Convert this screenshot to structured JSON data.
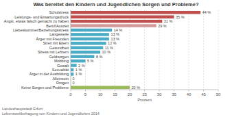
{
  "chart_data": {
    "type": "bar",
    "orientation": "horizontal",
    "title": "Was bereitet den Kindern und Jugendlichen Sorgen und Probleme?",
    "categories": [
      "Schulstress",
      "Leistungs- und Erwartungsdruck",
      "Angst, etwas falsch gemacht zu haben",
      "Beruf/Auszeit",
      "Liebeskummer/Beziehungsstress",
      "Langeweile",
      "Ärger mit Freunden",
      "Streit mit Eltern",
      "Gesundheit",
      "Stress mit Lehrern",
      "Geldsorgen",
      "Mobbing",
      "Gewalt",
      "Sexualität",
      "Ärger in der Ausbildung",
      "Alleinsein",
      "Drogen",
      "Keine Sorgen und Probleme"
    ],
    "values": [
      44,
      35,
      31,
      29,
      14,
      13,
      13,
      12,
      11,
      10,
      8,
      5,
      2,
      1,
      1,
      0,
      0,
      20
    ],
    "value_labels": [
      "44 %",
      "35 %",
      "31 %",
      "29 %",
      "14 %",
      "13 %",
      "13 %",
      "12 %",
      "11 %",
      "10 %",
      "8 %",
      "5 %",
      "2 %",
      "1 %",
      "1 %",
      "0",
      "0",
      "20 %"
    ],
    "colors": [
      "#c0504d",
      "#c0504d",
      "#c0504d",
      "#d49898",
      "#4bacc6",
      "#4bacc6",
      "#4bacc6",
      "#4bacc6",
      "#4bacc6",
      "#4bacc6",
      "#4bacc6",
      "#4bacc6",
      "#4bacc6",
      "#4bacc6",
      "#4bacc6",
      "#4bacc6",
      "#4bacc6",
      "#9bbb59"
    ],
    "x_label": "Prozent",
    "xlim": [
      0,
      50
    ],
    "xticks": [
      0,
      5,
      10,
      15,
      20,
      25,
      30,
      35,
      40,
      45,
      50
    ],
    "grid": true,
    "annotations": [
      "Landeshauptstadt Erfurt:",
      "Lebensweltbefragung von Kindern und Jugendlichen 2014"
    ]
  }
}
